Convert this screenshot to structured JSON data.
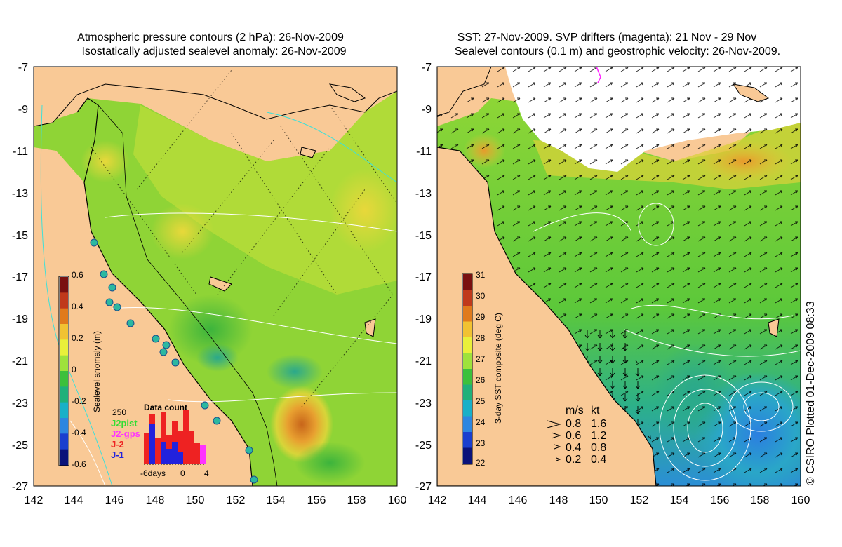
{
  "left_map": {
    "title_line1": "Atmospheric pressure contours (2 hPa): 26-Nov-2009",
    "title_line2": "Isostatically adjusted sealevel anomaly: 26-Nov-2009",
    "lat_ticks": [
      "-7",
      "-9",
      "-11",
      "-13",
      "-15",
      "-17",
      "-19",
      "-21",
      "-23",
      "-25",
      "-27"
    ],
    "lon_ticks": [
      "142",
      "144",
      "146",
      "148",
      "150",
      "152",
      "154",
      "156",
      "158",
      "160"
    ],
    "colorbar": {
      "label": "Sealevel anomaly (m)",
      "ticks": [
        "0.6",
        "0.4",
        "0.2",
        "0",
        "-0.2",
        "-0.4",
        "-0.6"
      ],
      "colors": [
        "#7a1010",
        "#c0391b",
        "#e07a1c",
        "#f1c232",
        "#e9f03a",
        "#9ee23c",
        "#3cc03c",
        "#1fb07a",
        "#19b0c8",
        "#2d86e0",
        "#1a3fcf",
        "#0a127a"
      ]
    },
    "data_count": {
      "title": "Data count",
      "max_label": "250",
      "xaxis": [
        "-6days",
        "0",
        "4"
      ],
      "legend": [
        {
          "label": "J2pist",
          "color": "#33dd33"
        },
        {
          "label": "J2-gps",
          "color": "#ff33ff"
        },
        {
          "label": "J-2",
          "color": "#ee2222"
        },
        {
          "label": "J-1",
          "color": "#2222dd"
        }
      ]
    }
  },
  "right_map": {
    "title_line1": "SST: 27-Nov-2009. SVP drifters (magenta): 21 Nov - 29 Nov",
    "title_line2": "Sealevel contours (0.1 m) and geostrophic velocity: 26-Nov-2009.",
    "lat_ticks": [
      "-7",
      "-9",
      "-11",
      "-13",
      "-15",
      "-17",
      "-19",
      "-21",
      "-23",
      "-25",
      "-27"
    ],
    "lon_ticks": [
      "142",
      "144",
      "146",
      "148",
      "150",
      "152",
      "154",
      "156",
      "158",
      "160"
    ],
    "colorbar": {
      "label": "3-day SST composite (deg C)",
      "ticks": [
        "31",
        "30",
        "29",
        "28",
        "27",
        "26",
        "25",
        "24",
        "23",
        "22"
      ],
      "colors": [
        "#7a1010",
        "#c0391b",
        "#e07a1c",
        "#f1c232",
        "#e9f03a",
        "#9ee23c",
        "#3cc03c",
        "#1fb07a",
        "#19b0c8",
        "#2d86e0",
        "#1a3fcf",
        "#0a127a"
      ]
    },
    "velocity_legend": {
      "header_ms": "m/s",
      "header_kt": "kt",
      "rows": [
        {
          "ms": "0.8",
          "kt": "1.6"
        },
        {
          "ms": "0.6",
          "kt": "1.2"
        },
        {
          "ms": "0.4",
          "kt": "0.8"
        },
        {
          "ms": "0.2",
          "kt": "0.4"
        }
      ]
    }
  },
  "credit": "© CSIRO Plotted 01-Dec-2009 08:33"
}
